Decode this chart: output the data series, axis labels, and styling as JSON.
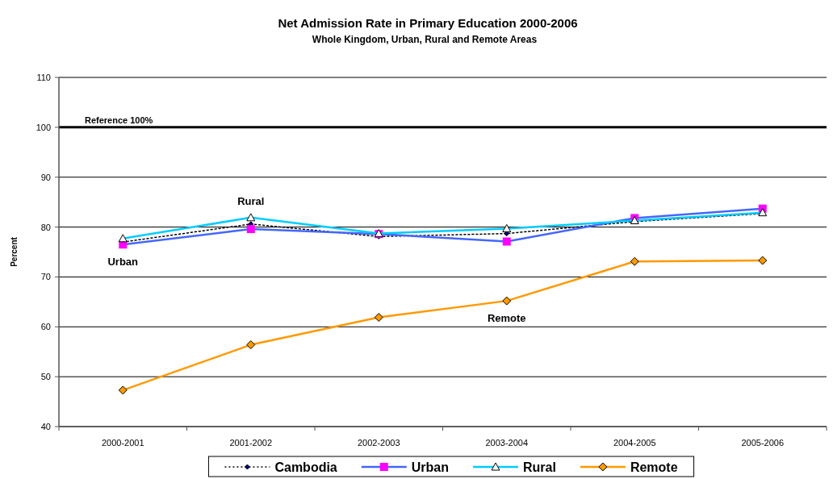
{
  "chart_data": {
    "type": "line",
    "title": "Net Admission Rate in Primary Education 2000-2006",
    "subtitle": "Whole Kingdom, Urban, Rural and Remote Areas",
    "ylabel": "Percent",
    "categories": [
      "2000-2001",
      "2001-2002",
      "2002-2003",
      "2003-2004",
      "2004-2005",
      "2005-2006"
    ],
    "series": [
      {
        "name": "Cambodia",
        "color": "#000000",
        "colors": [
          "#000080",
          "#000080",
          "#000080",
          "#000080",
          "#000080",
          "#000080"
        ],
        "marker": "diamond",
        "line_style": "dotted",
        "values": [
          77.0,
          80.6,
          78.1,
          78.7,
          81.1,
          82.7
        ]
      },
      {
        "name": "Urban",
        "color": "#4466ff",
        "colors": [
          "#ff00ff",
          "#ff00ff",
          "#ff00ff",
          "#ff00ff",
          "#ff00ff",
          "#ff00ff"
        ],
        "marker": "square",
        "line_style": "solid",
        "values": [
          76.5,
          79.6,
          78.6,
          77.1,
          81.8,
          83.7
        ]
      },
      {
        "name": "Rural",
        "color": "#00ccff",
        "colors": [
          "#ffffff",
          "#ffffff",
          "#ffffff",
          "#ffffff",
          "#ffffff",
          "#ffffff"
        ],
        "marker": "triangle",
        "line_style": "solid",
        "values": [
          77.7,
          81.9,
          78.7,
          79.7,
          81.3,
          82.9
        ]
      },
      {
        "name": "Remote",
        "color": "#ff9900",
        "marker": "diamond",
        "line_style": "solid",
        "values": [
          47.3,
          56.4,
          61.9,
          65.2,
          73.1,
          73.3
        ]
      }
    ],
    "ylim": [
      40,
      110
    ],
    "yticks": [
      40,
      50,
      60,
      70,
      80,
      90,
      100,
      110
    ],
    "grid": "y",
    "legend": "bottom",
    "ref_lines": [
      {
        "axis": "y",
        "value": 100,
        "label": "Reference 100%",
        "color": "#000000"
      }
    ],
    "annotations": [
      {
        "text": "Rural",
        "x": "2001-2002",
        "y": 81.9
      },
      {
        "text": "Urban",
        "x": "2000-2001",
        "y": 76.5
      },
      {
        "text": "Remote",
        "x": "2003-2004",
        "y": 65.2
      }
    ]
  }
}
